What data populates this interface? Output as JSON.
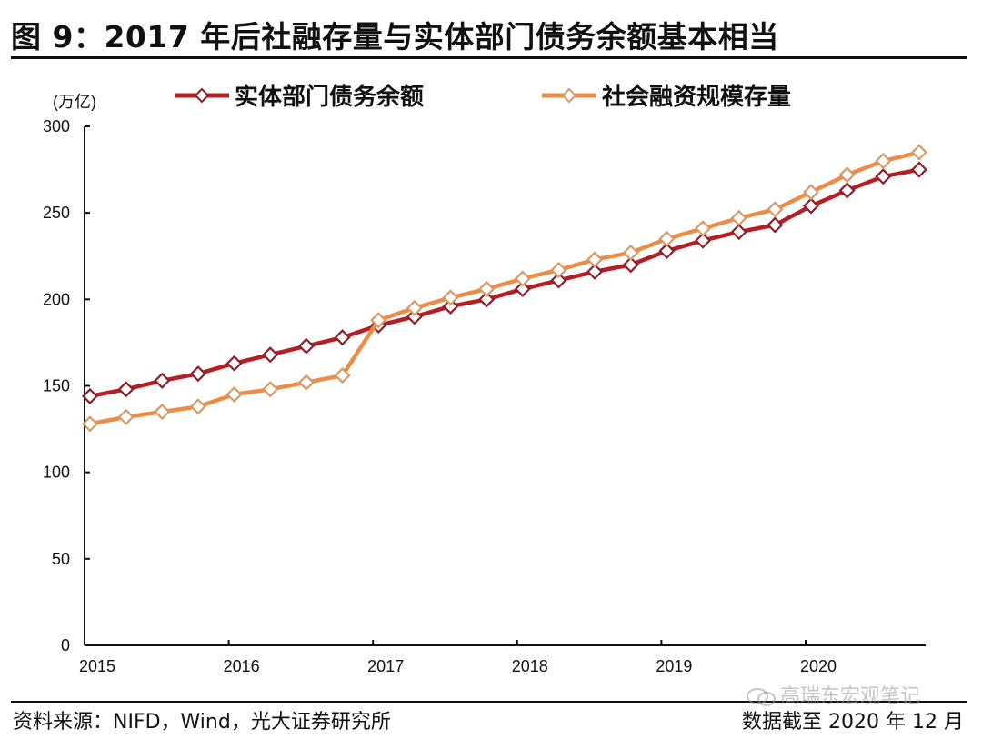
{
  "title": "图 9：2017 年后社融存量与实体部门债务余额基本相当",
  "footer": {
    "source": "资料来源：NIFD，Wind，光大证券研究所",
    "as_of": "数据截至 2020 年 12 月",
    "watermark": "高瑞东宏观笔记"
  },
  "colors": {
    "series_debt": "#b51f24",
    "series_tsf": "#ec8c45",
    "axis": "#111111"
  },
  "chart_data": {
    "type": "line",
    "title": "图 9：2017 年后社融存量与实体部门债务余额基本相当",
    "xlabel": "",
    "ylabel": "(万亿)",
    "ylim": [
      0,
      300
    ],
    "yticks": [
      0,
      50,
      100,
      150,
      200,
      250,
      300
    ],
    "xticks": [
      "2015",
      "2016",
      "2017",
      "2018",
      "2019",
      "2020"
    ],
    "grid": false,
    "legend_position": "top",
    "x": [
      "2015Q1",
      "2015Q2",
      "2015Q3",
      "2015Q4",
      "2016Q1",
      "2016Q2",
      "2016Q3",
      "2016Q4",
      "2017Q1",
      "2017Q2",
      "2017Q3",
      "2017Q4",
      "2018Q1",
      "2018Q2",
      "2018Q3",
      "2018Q4",
      "2019Q1",
      "2019Q2",
      "2019Q3",
      "2019Q4",
      "2020Q1",
      "2020Q2",
      "2020Q3",
      "2020Q4"
    ],
    "series": [
      {
        "name": "实体部门债务余额",
        "marker": "hollow-diamond",
        "values": [
          144,
          148,
          153,
          157,
          163,
          168,
          173,
          178,
          185,
          190,
          196,
          200,
          206,
          211,
          216,
          220,
          228,
          234,
          239,
          243,
          254,
          263,
          271,
          275
        ]
      },
      {
        "name": "社会融资规模存量",
        "marker": "hollow-diamond",
        "values": [
          128,
          132,
          135,
          138,
          145,
          148,
          152,
          156,
          188,
          195,
          201,
          206,
          212,
          217,
          223,
          227,
          235,
          241,
          247,
          252,
          262,
          272,
          280,
          285
        ]
      }
    ]
  }
}
